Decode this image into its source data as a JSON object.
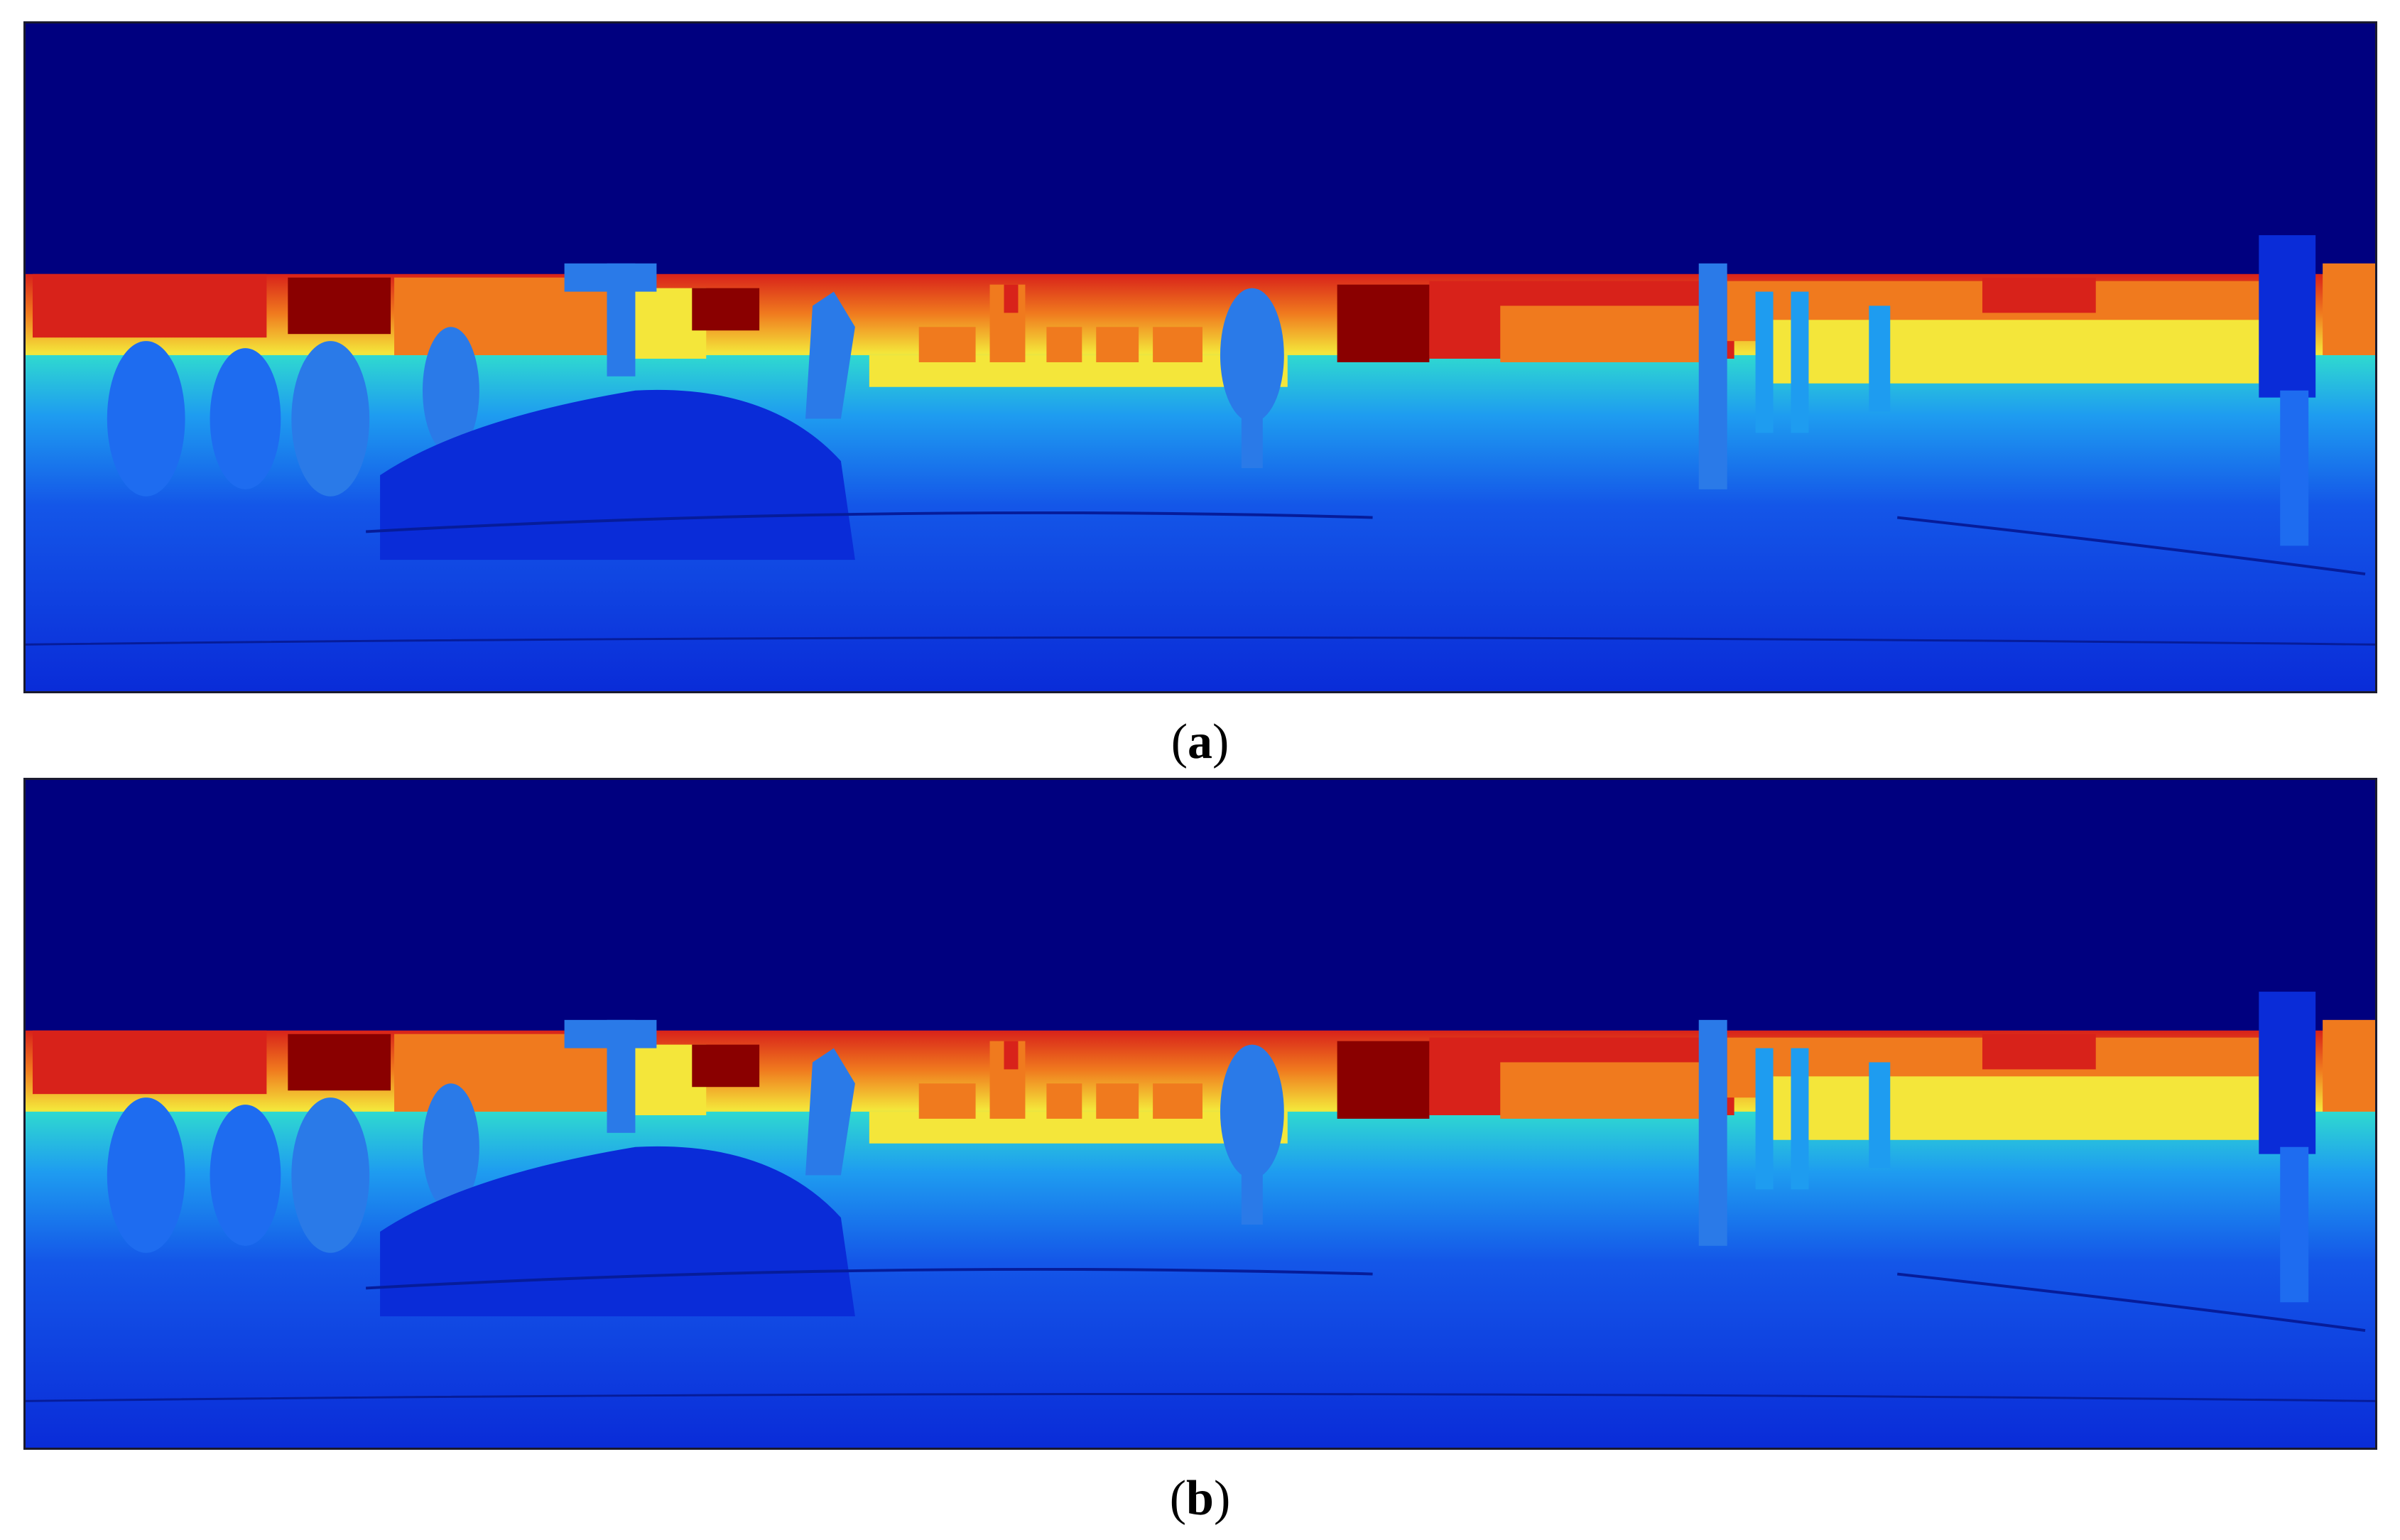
{
  "captions": {
    "a": {
      "open": "(",
      "letter": "a",
      "close": ")"
    },
    "b": {
      "open": "(",
      "letter": "b",
      "close": ")"
    }
  },
  "colormap": "jet",
  "colors": {
    "sky": "#00007f",
    "near_ground": "#0a2cd8",
    "mid_ground": "#1e6cf0",
    "cyan": "#2fd9d0",
    "yellow": "#f4e63a",
    "orange": "#f07a1e",
    "red": "#d8221a",
    "dark_red": "#8a0000",
    "object_blue": "#2a7ae8"
  }
}
